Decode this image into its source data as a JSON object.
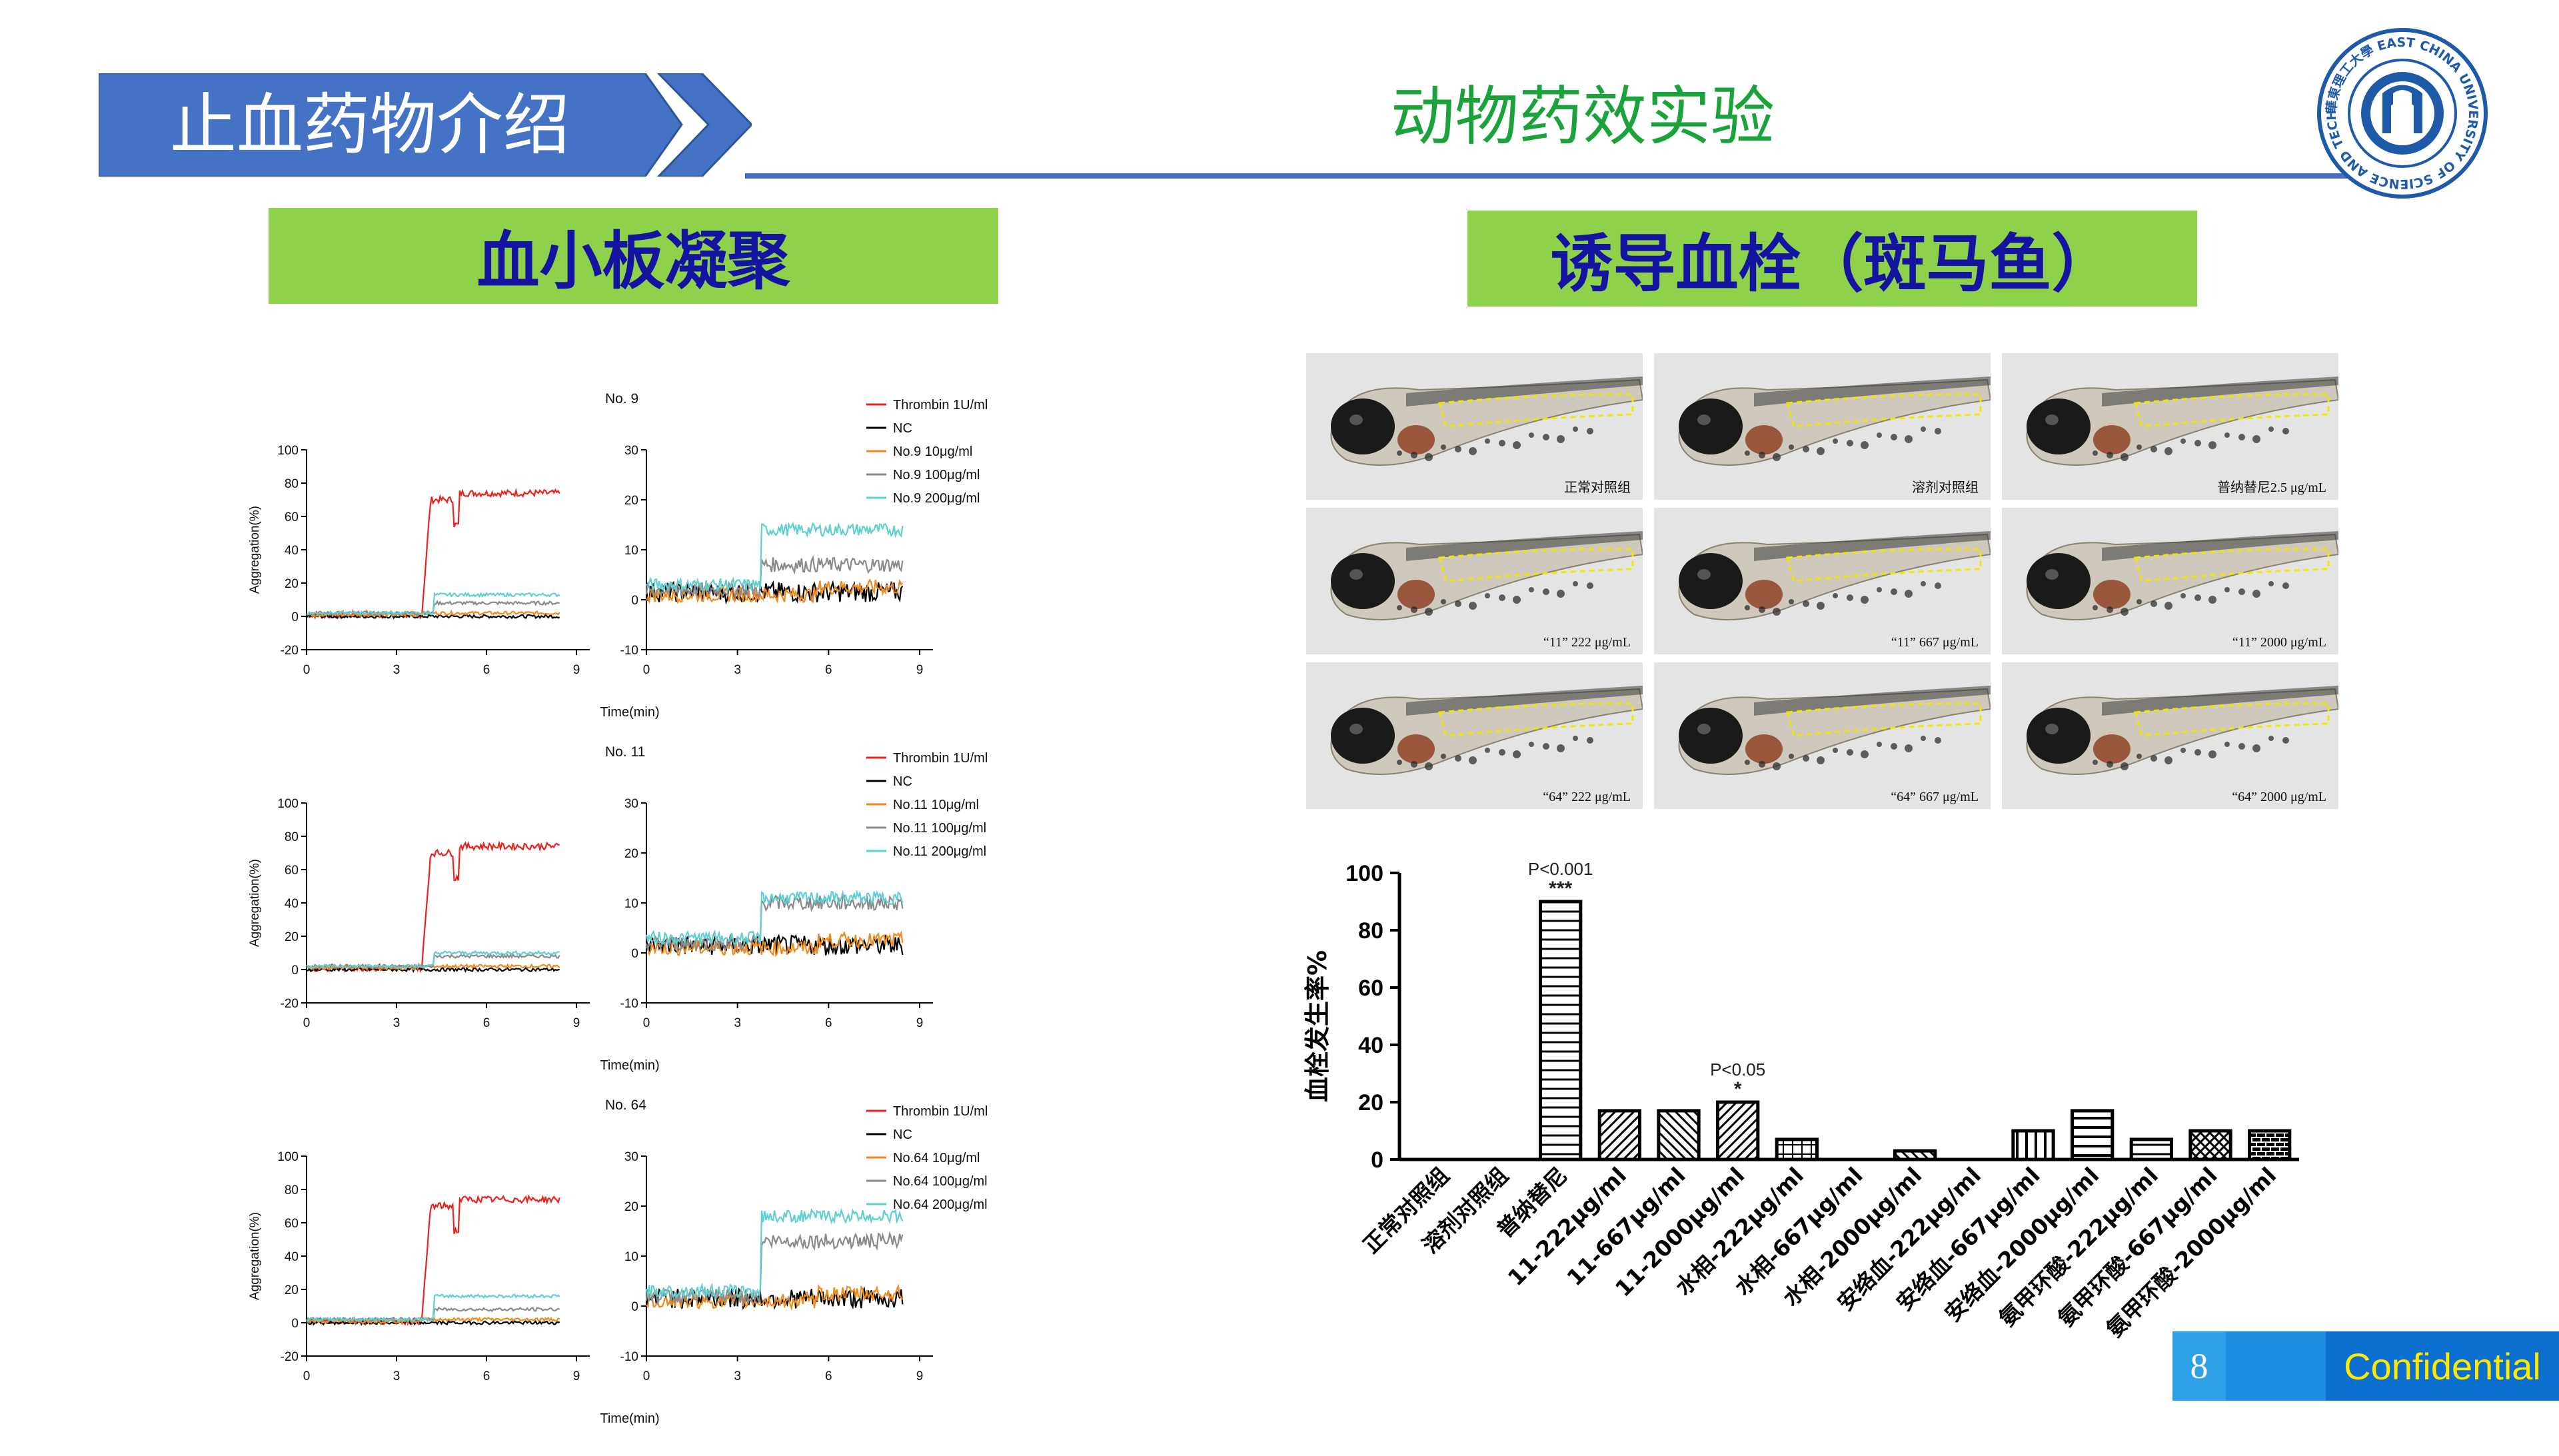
{
  "header": {
    "title": "止血药物介绍",
    "section_title": "动物药效实验",
    "banner_color": "#4472c4",
    "line_color": "#4a6fc1"
  },
  "logo": {
    "arc_text": "華東理工大學 EAST CHINA UNIVERSITY OF SCIENCE AND TECHNOLOGY",
    "color": "#1f5aa8"
  },
  "left": {
    "label": "血小板凝聚",
    "label_bg": "#8ed14b",
    "label_color": "#1414a0"
  },
  "right": {
    "label": "诱导血栓（斑马鱼）"
  },
  "aggregation_panels": [
    {
      "title": "No. 9",
      "legend": [
        "Thrombin 1U/ml",
        "NC",
        "No.9 10μg/ml",
        "No.9 100μg/ml",
        "No.9 200μg/ml"
      ],
      "left_yticks": [
        "100",
        "80",
        "60",
        "40",
        "20",
        "0",
        "-20"
      ],
      "right_yticks": [
        "30",
        "20",
        "10",
        "0",
        "-10"
      ],
      "xticks": [
        "0",
        "3",
        "6",
        "9"
      ],
      "ylabel": "Aggregation(%)",
      "xlabel": "Time(min)"
    },
    {
      "title": "No. 11",
      "legend": [
        "Thrombin 1U/ml",
        "NC",
        "No.11 10μg/ml",
        "No.11 100μg/ml",
        "No.11 200μg/ml"
      ],
      "left_yticks": [
        "100",
        "80",
        "60",
        "40",
        "20",
        "0",
        "-20"
      ],
      "right_yticks": [
        "30",
        "20",
        "10",
        "0",
        "-10"
      ],
      "xticks": [
        "0",
        "3",
        "6",
        "9"
      ],
      "ylabel": "Aggregation(%)",
      "xlabel": "Time(min)"
    },
    {
      "title": "No. 64",
      "legend": [
        "Thrombin 1U/ml",
        "NC",
        "No.64 10μg/ml",
        "No.64 100μg/ml",
        "No.64 200μg/ml"
      ],
      "left_yticks": [
        "100",
        "80",
        "60",
        "40",
        "20",
        "0",
        "-20"
      ],
      "right_yticks": [
        "30",
        "20",
        "10",
        "0",
        "-10"
      ],
      "xticks": [
        "0",
        "3",
        "6",
        "9"
      ],
      "ylabel": "Aggregation(%)",
      "xlabel": "Time(min)"
    }
  ],
  "series_colors": [
    "#e8231f",
    "#000000",
    "#f08a1c",
    "#8a8a8a",
    "#5fcfcf"
  ],
  "zebrafish": {
    "captions": [
      "正常对照组",
      "溶剂对照组",
      "普纳替尼2.5 μg/mL",
      "“11” 222 μg/mL",
      "“11” 667 μg/mL",
      "“11” 2000 μg/mL",
      "“64” 222 μg/mL",
      "“64” 667 μg/mL",
      "“64” 2000 μg/mL"
    ]
  },
  "thrombus_chart": {
    "ylabel": "血栓发生率%",
    "annotations": [
      {
        "category_index": 2,
        "p": "P<0.001",
        "stars": "***"
      },
      {
        "category_index": 5,
        "p": "P<0.05",
        "stars": "*"
      }
    ]
  },
  "chart_data": {
    "type": "bar",
    "ylabel": "血栓发生率%",
    "ylim": [
      0,
      100
    ],
    "yticks": [
      "0",
      "20",
      "40",
      "60",
      "80",
      "100"
    ],
    "categories": [
      "正常对照组",
      "溶剂对照组",
      "普纳替尼",
      "11-222μg/ml",
      "11-667μg/ml",
      "11-2000μg/ml",
      "水相-222μg/ml",
      "水相-667μg/ml",
      "水相-2000μg/ml",
      "安络血-222μg/ml",
      "安络血-667μg/ml",
      "安络血-2000μg/ml",
      "氨甲环酸-222μg/ml",
      "氨甲环酸-667μg/ml",
      "氨甲环酸-2000μg/ml"
    ],
    "values": [
      0,
      0,
      90,
      17,
      17,
      20,
      7,
      0,
      3,
      0,
      10,
      17,
      7,
      10,
      10
    ],
    "grid": false
  },
  "footer": {
    "page_number": "8",
    "confidential": "Confidential"
  }
}
